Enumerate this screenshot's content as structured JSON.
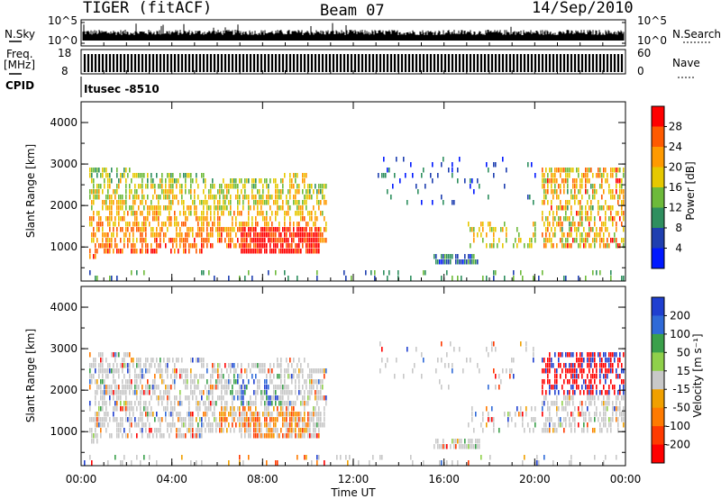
{
  "header": {
    "station": "TIGER (fitACF)",
    "beam": "Beam 07",
    "date": "14/Sep/2010"
  },
  "noise_panel": {
    "left_label": "N.Sky",
    "left_ticks": [
      "10^5",
      "10^0"
    ],
    "right_label": "N.Search",
    "right_ticks": [
      "10^5",
      "10^0"
    ]
  },
  "freq_panel": {
    "left_label_1": "Freq.",
    "left_label_2": "[MHz]",
    "left_ticks": [
      "18",
      "8"
    ],
    "right_label": "Nave",
    "right_ticks": [
      "60",
      "0"
    ],
    "cpid_label": "CPID",
    "cpid_value": "Itusec -8510"
  },
  "chart_data": [
    {
      "type": "heatmap",
      "name": "power",
      "ylabel": "Slant Range [km]",
      "yticks": [
        "4000",
        "3000",
        "2000",
        "1000"
      ],
      "ylim": [
        180,
        4500
      ],
      "colorbar_label": "Power [dB]",
      "colorbar_ticks": [
        "28",
        "24",
        "20",
        "16",
        "12",
        "8",
        "4"
      ],
      "colorbar_colors": [
        "#ff0000",
        "#ff5a00",
        "#ff9a00",
        "#e6c800",
        "#6dba3a",
        "#2f8f5f",
        "#1f3fb0",
        "#0018ff"
      ],
      "echo_regions": [
        {
          "t": [
            0.3,
            10.8
          ],
          "range_km": [
            800,
            3000
          ],
          "note": "strong echoes 00–11 UT"
        },
        {
          "t": [
            15.5,
            17.5
          ],
          "range_km": [
            700,
            900
          ]
        },
        {
          "t": [
            20.3,
            24.0
          ],
          "range_km": [
            1000,
            3000
          ]
        }
      ]
    },
    {
      "type": "heatmap",
      "name": "velocity",
      "ylabel": "Slant Range [km]",
      "yticks": [
        "4000",
        "3000",
        "2000",
        "1000"
      ],
      "ylim": [
        180,
        4500
      ],
      "colorbar_label": "Velocity [m s⁻¹]",
      "colorbar_ticks": [
        "200",
        "100",
        "50",
        "15",
        "-15",
        "-50",
        "-100",
        "-200"
      ],
      "colorbar_colors": [
        "#1f3fd0",
        "#2f6ad8",
        "#3aa04a",
        "#8fd04a",
        "#c8c8c8",
        "#f0a000",
        "#ff7a00",
        "#ff3a00",
        "#ff0000"
      ]
    }
  ],
  "x_axis": {
    "ticks": [
      "00:00",
      "04:00",
      "08:00",
      "12:00",
      "16:00",
      "20:00",
      "00:00"
    ],
    "label": "Time UT"
  }
}
